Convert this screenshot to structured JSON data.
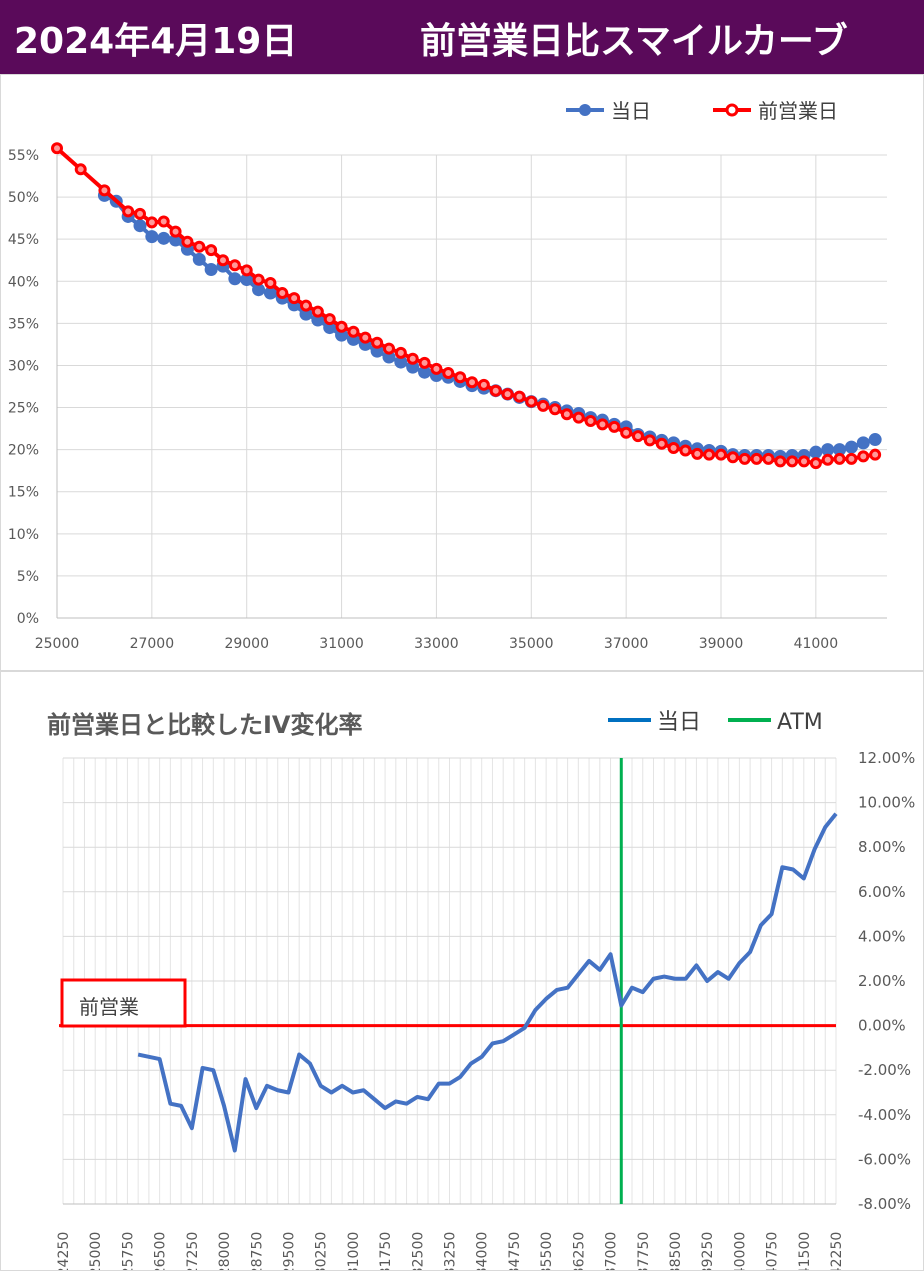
{
  "header": {
    "date": "2024年4月19日",
    "title": "前営業日比スマイルカーブ"
  },
  "colors": {
    "header_bg": "#5a0a5a",
    "today": "#4472c4",
    "prev": "#ff0000",
    "atm": "#00b050",
    "change": "#4472c4",
    "zero_line": "#ff0000",
    "grid": "#d9d9d9"
  },
  "chart_data": [
    {
      "type": "line",
      "title": "",
      "xlim": [
        25000,
        42500
      ],
      "ylim": [
        0,
        55
      ],
      "x_ticks": [
        "25000",
        "27000",
        "29000",
        "31000",
        "33000",
        "35000",
        "37000",
        "39000",
        "41000"
      ],
      "y_ticks": [
        "0%",
        "5%",
        "10%",
        "15%",
        "20%",
        "25%",
        "30%",
        "35%",
        "40%",
        "45%",
        "50%",
        "55%"
      ],
      "series": [
        {
          "name": "当日",
          "x": [
            26000,
            26250,
            26500,
            26750,
            27000,
            27250,
            27500,
            27750,
            28000,
            28250,
            28500,
            28750,
            29000,
            29250,
            29500,
            29750,
            30000,
            30250,
            30500,
            30750,
            31000,
            31250,
            31500,
            31750,
            32000,
            32250,
            32500,
            32750,
            33000,
            33250,
            33500,
            33750,
            34000,
            34250,
            34500,
            34750,
            35000,
            35250,
            35500,
            35750,
            36000,
            36250,
            36500,
            36750,
            37000,
            37250,
            37500,
            37750,
            38000,
            38250,
            38500,
            38750,
            39000,
            39250,
            39500,
            39750,
            40000,
            40250,
            40500,
            40750,
            41000,
            41250,
            41500,
            41750,
            42000,
            42250
          ],
          "values": [
            50.2,
            49.5,
            47.7,
            46.6,
            45.3,
            45.1,
            44.9,
            43.8,
            42.6,
            41.4,
            41.8,
            40.3,
            40.2,
            39.0,
            38.6,
            38.0,
            37.2,
            36.1,
            35.4,
            34.5,
            33.6,
            33.1,
            32.5,
            31.7,
            31.0,
            30.4,
            29.8,
            29.2,
            28.8,
            28.6,
            28.1,
            27.6,
            27.3,
            27.0,
            26.6,
            26.2,
            25.7,
            25.4,
            25.0,
            24.6,
            24.3,
            23.8,
            23.5,
            23.0,
            22.7,
            21.8,
            21.5,
            21.1,
            20.8,
            20.4,
            20.1,
            19.9,
            19.8,
            19.4,
            19.3,
            19.3,
            19.3,
            19.2,
            19.3,
            19.3,
            19.7,
            20.0,
            20.0,
            20.3,
            20.8,
            21.2
          ]
        },
        {
          "name": "前営業日",
          "x": [
            25000,
            25500,
            26000,
            26500,
            26750,
            27000,
            27250,
            27500,
            27750,
            28000,
            28250,
            28500,
            28750,
            29000,
            29250,
            29500,
            29750,
            30000,
            30250,
            30500,
            30750,
            31000,
            31250,
            31500,
            31750,
            32000,
            32250,
            32500,
            32750,
            33000,
            33250,
            33500,
            33750,
            34000,
            34250,
            34500,
            34750,
            35000,
            35250,
            35500,
            35750,
            36000,
            36250,
            36500,
            36750,
            37000,
            37250,
            37500,
            37750,
            38000,
            38250,
            38500,
            38750,
            39000,
            39250,
            39500,
            39750,
            40000,
            40250,
            40500,
            40750,
            41000,
            41250,
            41500,
            41750,
            42000,
            42250
          ],
          "values": [
            55.8,
            53.3,
            50.8,
            48.3,
            48.0,
            47.0,
            47.1,
            45.9,
            44.7,
            44.1,
            43.7,
            42.5,
            41.9,
            41.3,
            40.2,
            39.8,
            38.6,
            38.0,
            37.1,
            36.4,
            35.5,
            34.6,
            34.0,
            33.3,
            32.7,
            32.0,
            31.5,
            30.8,
            30.3,
            29.6,
            29.1,
            28.6,
            28.0,
            27.7,
            27.0,
            26.6,
            26.3,
            25.7,
            25.2,
            24.8,
            24.2,
            23.8,
            23.4,
            23.0,
            22.7,
            22.0,
            21.6,
            21.1,
            20.7,
            20.2,
            19.9,
            19.5,
            19.4,
            19.4,
            19.1,
            18.9,
            18.9,
            18.9,
            18.6,
            18.6,
            18.6,
            18.4,
            18.8,
            18.9,
            18.9,
            19.2,
            19.4
          ]
        }
      ]
    },
    {
      "type": "line",
      "title": "前営業日と比較したIV変化率",
      "xlim": [
        24250,
        42250
      ],
      "ylim": [
        -8,
        12
      ],
      "x_ticks": [
        "24250",
        "25000",
        "25750",
        "26500",
        "27250",
        "28000",
        "28750",
        "29500",
        "30250",
        "31000",
        "31750",
        "32500",
        "33250",
        "34000",
        "34750",
        "35500",
        "36250",
        "37000",
        "37750",
        "38500",
        "39250",
        "40000",
        "40750",
        "41500",
        "42250"
      ],
      "y_ticks": [
        "-8.00%",
        "-6.00%",
        "-4.00%",
        "-2.00%",
        "0.00%",
        "2.00%",
        "4.00%",
        "6.00%",
        "8.00%",
        "10.00%",
        "12.00%"
      ],
      "zero_label": "前営業",
      "atm": {
        "name": "ATM",
        "x": 37250
      },
      "series": [
        {
          "name": "当日",
          "x": [
            26000,
            26250,
            26500,
            26750,
            27000,
            27250,
            27500,
            27750,
            28000,
            28250,
            28500,
            28750,
            29000,
            29250,
            29500,
            29750,
            30000,
            30250,
            30500,
            30750,
            31000,
            31250,
            31500,
            31750,
            32000,
            32250,
            32500,
            32750,
            33000,
            33250,
            33500,
            33750,
            34000,
            34250,
            34500,
            34750,
            35000,
            35250,
            35500,
            35750,
            36000,
            36250,
            36500,
            36750,
            37000,
            37250,
            37500,
            37750,
            38000,
            38250,
            38500,
            38750,
            39000,
            39250,
            39500,
            39750,
            40000,
            40250,
            40500,
            40750,
            41000,
            41250,
            41500,
            41750,
            42000,
            42250
          ],
          "values": [
            -1.3,
            -1.4,
            -1.5,
            -3.5,
            -3.6,
            -4.6,
            -1.9,
            -2.0,
            -3.6,
            -5.6,
            -2.4,
            -3.7,
            -2.7,
            -2.9,
            -3.0,
            -1.3,
            -1.7,
            -2.7,
            -3.0,
            -2.7,
            -3.0,
            -2.9,
            -3.3,
            -3.7,
            -3.4,
            -3.5,
            -3.2,
            -3.3,
            -2.6,
            -2.6,
            -2.3,
            -1.7,
            -1.4,
            -0.8,
            -0.7,
            -0.4,
            -0.1,
            0.7,
            1.2,
            1.6,
            1.7,
            2.3,
            2.9,
            2.5,
            3.2,
            0.9,
            1.7,
            1.5,
            2.1,
            2.2,
            2.1,
            2.1,
            2.7,
            2.0,
            2.4,
            2.1,
            2.8,
            3.3,
            4.5,
            5.0,
            7.1,
            7.0,
            6.6,
            7.9,
            8.9,
            9.5
          ]
        }
      ]
    }
  ]
}
